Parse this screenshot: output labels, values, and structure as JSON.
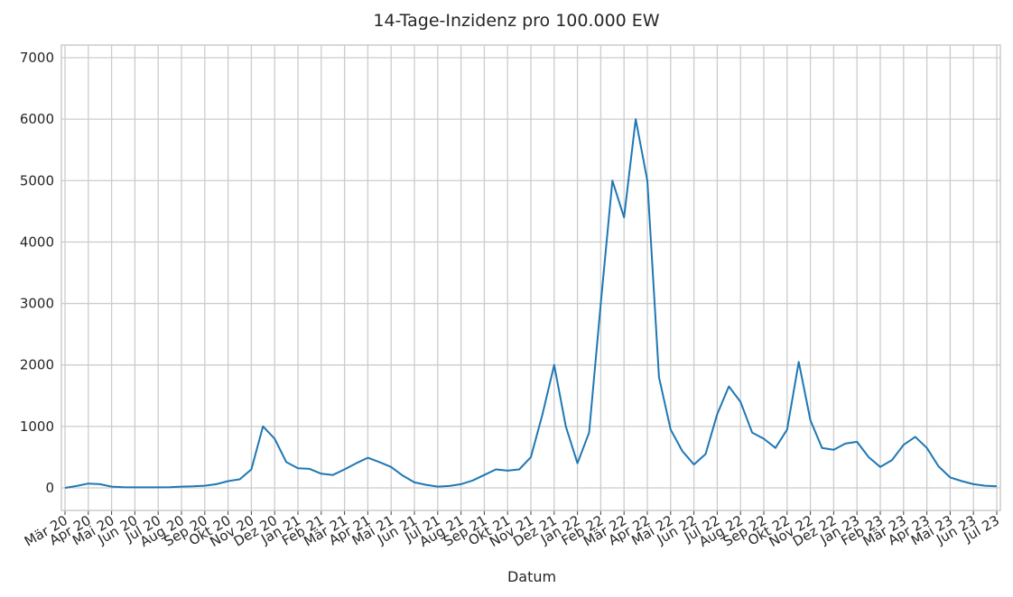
{
  "chart_data": {
    "type": "line",
    "title": "14-Tage-Inzidenz pro 100.000 EW",
    "x_label": "Datum",
    "categories": [
      "Mär 20",
      null,
      "Apr 20",
      null,
      "Mai 20",
      null,
      "Jun 20",
      null,
      "Jul 20",
      null,
      "Aug 20",
      null,
      "Sep 20",
      null,
      "Okt 20",
      null,
      "Nov 20",
      null,
      "Dez 20",
      null,
      "Jan 21",
      null,
      "Feb 21",
      null,
      "Mär 21",
      null,
      "Apr 21",
      null,
      "Mai 21",
      null,
      "Jun 21",
      null,
      "Jul 21",
      null,
      "Aug 21",
      null,
      "Sep 21",
      null,
      "Okt 21",
      null,
      "Nov 21",
      null,
      "Dez 21",
      null,
      "Jan 22",
      null,
      "Feb 22",
      null,
      "Mär 22",
      null,
      "Apr 22",
      null,
      "Mai 22",
      null,
      "Jun 22",
      null,
      "Jul 22",
      null,
      "Aug 22",
      null,
      "Sep 22",
      null,
      "Okt 22",
      null,
      "Nov 22",
      null,
      "Dez 22",
      null,
      "Jan 23",
      null,
      "Feb 23",
      null,
      "Mär 23",
      null,
      "Apr 23",
      null,
      "Mai 23",
      null,
      "Jun 23",
      null,
      "Jul 23"
    ],
    "values": [
      0,
      30,
      70,
      60,
      20,
      10,
      8,
      8,
      8,
      12,
      20,
      25,
      35,
      60,
      110,
      140,
      300,
      1000,
      800,
      420,
      320,
      310,
      230,
      210,
      300,
      400,
      490,
      420,
      340,
      200,
      90,
      50,
      20,
      30,
      60,
      120,
      210,
      300,
      280,
      300,
      500,
      1200,
      2000,
      1000,
      400,
      900,
      3000,
      5000,
      4400,
      6000,
      5000,
      1800,
      950,
      600,
      380,
      550,
      1200,
      1650,
      1400,
      900,
      800,
      650,
      950,
      2050,
      1100,
      650,
      620,
      720,
      750,
      500,
      340,
      450,
      700,
      830,
      650,
      350,
      170,
      110,
      60,
      35,
      25
    ],
    "color": "#1f77b4",
    "ylim": [
      -367,
      7205
    ],
    "yticks": [
      0,
      1000,
      2000,
      3000,
      4000,
      5000,
      6000,
      7000
    ],
    "grid": true
  }
}
